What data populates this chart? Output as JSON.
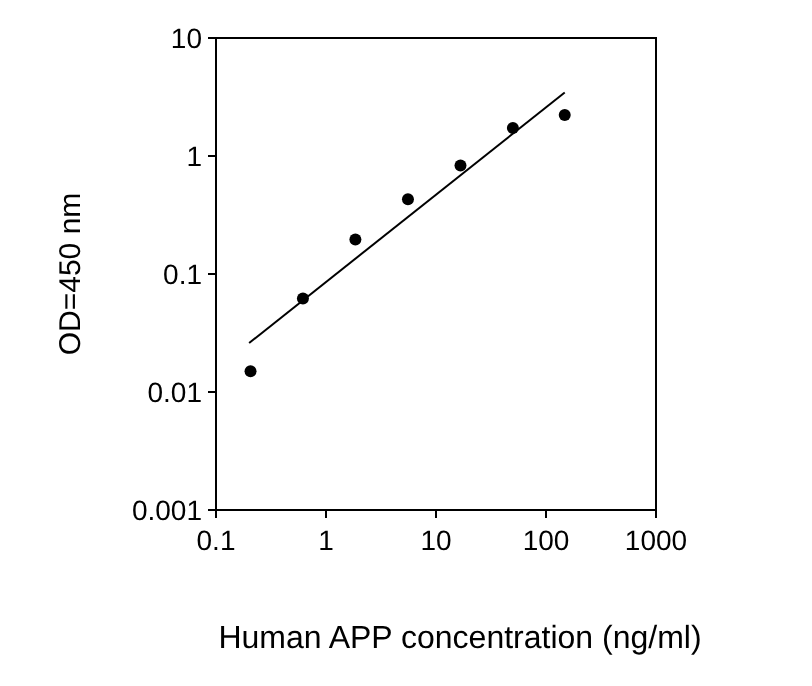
{
  "chart_data": {
    "type": "scatter",
    "xlabel": "Human APP concentration (ng/ml)",
    "ylabel": "OD=450 nm",
    "log": "xy",
    "xlim": [
      0.1,
      1000
    ],
    "ylim": [
      0.001,
      10
    ],
    "xticks": [
      0.1,
      1,
      10,
      100,
      1000
    ],
    "yticks": [
      0.001,
      0.01,
      0.1,
      1,
      10
    ],
    "marker": "circle",
    "grid": false,
    "x": [
      0.206,
      0.617,
      1.85,
      5.56,
      16.7,
      50,
      148
    ],
    "series": [
      {
        "color": "#000000",
        "values": [
          0.015,
          0.062,
          0.196,
          0.43,
          0.83,
          1.73,
          2.23
        ]
      },
      {
        "type": "line",
        "color": "#000000",
        "x": [
          0.2,
          148
        ],
        "values": [
          0.026,
          3.45
        ],
        "marker": "none"
      }
    ]
  }
}
